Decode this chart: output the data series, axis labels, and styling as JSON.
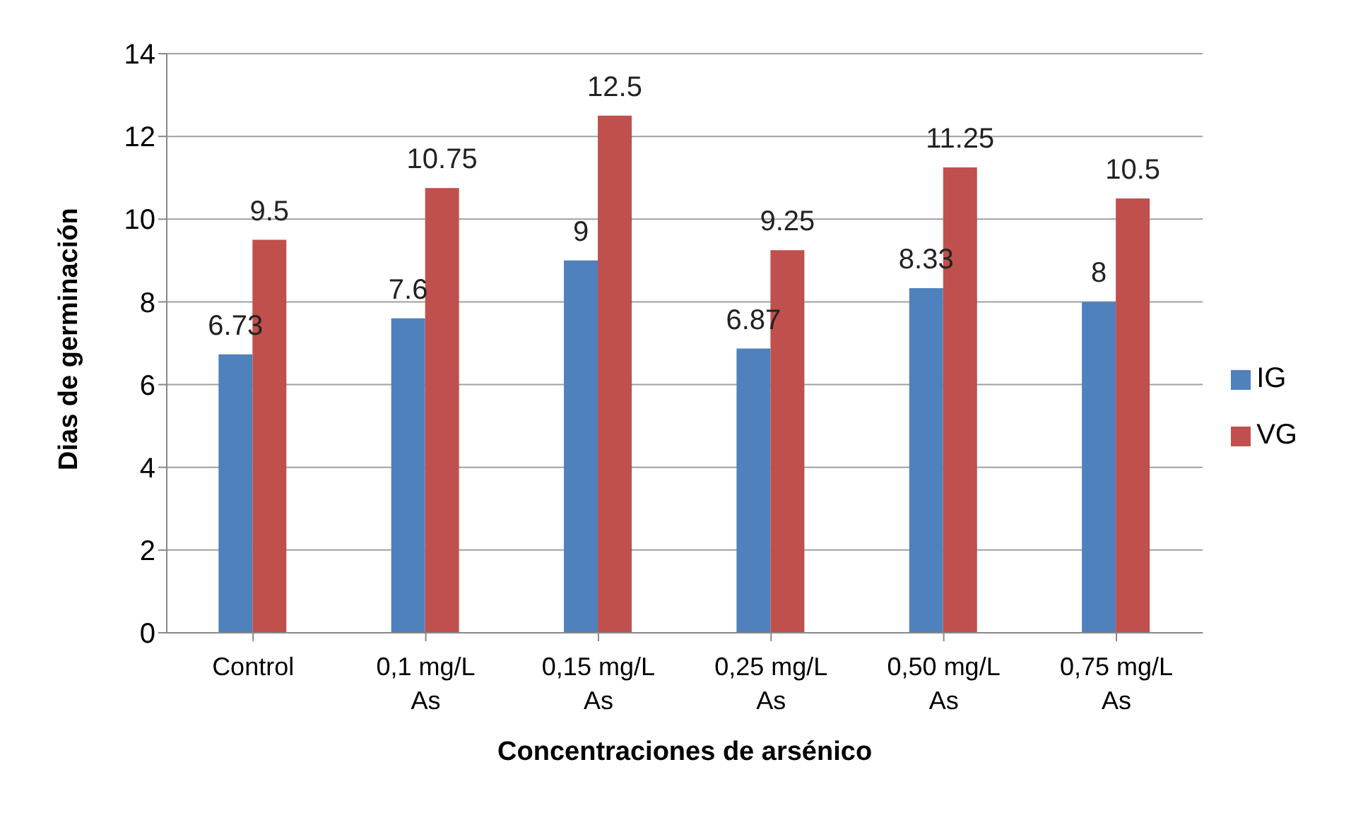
{
  "chart_data": {
    "type": "bar",
    "xlabel": "Concentraciones de arsénico",
    "ylabel": "Dias de germinación",
    "categories": [
      "Control",
      "0,1 mg/L As",
      "0,15 mg/L As",
      "0,25 mg/L As",
      "0,50 mg/L As",
      "0,75 mg/L As"
    ],
    "series": [
      {
        "name": "IG",
        "color": "#4f81bd",
        "values": [
          6.73,
          7.6,
          9,
          6.87,
          8.33,
          8
        ]
      },
      {
        "name": "VG",
        "color": "#c0504d",
        "values": [
          9.5,
          10.75,
          12.5,
          9.25,
          11.25,
          10.5
        ]
      }
    ],
    "ylim": [
      0,
      14
    ],
    "yticks": [
      0,
      2,
      4,
      6,
      8,
      10,
      12,
      14
    ],
    "grid": "y",
    "legend": "right",
    "data_labels": true
  }
}
